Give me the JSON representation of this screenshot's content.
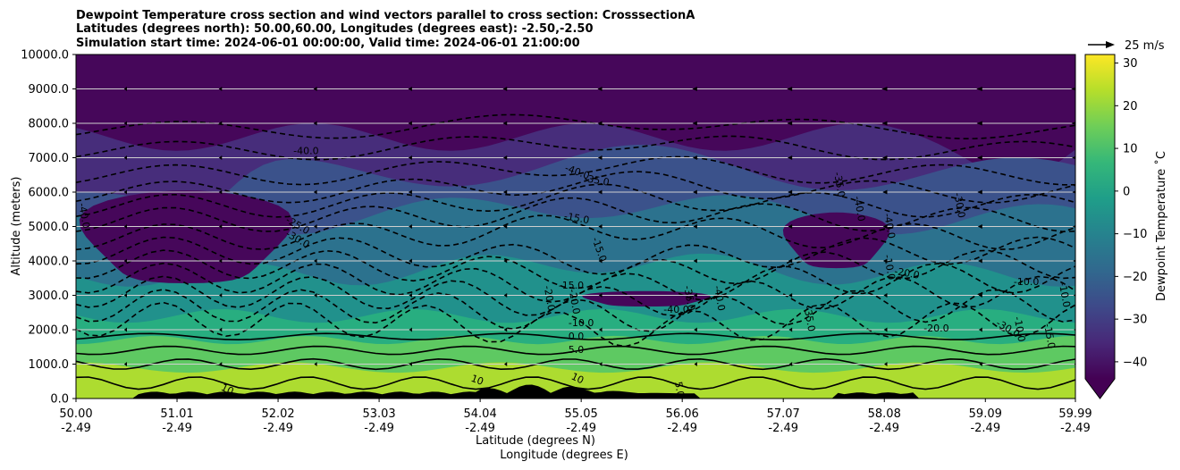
{
  "chart_data": {
    "type": "heatmap",
    "title_lines": [
      "Dewpoint Temperature cross section and wind vectors parallel to cross section: CrosssectionA",
      "Latitudes (degrees north): 50.00,60.00, Longitudes (degrees east): -2.50,-2.50",
      "Simulation start time: 2024-06-01 00:00:00, Valid time: 2024-06-01 21:00:00"
    ],
    "ylabel": "Altitude (meters)",
    "xlabel_lat": "Latitude (degrees N)",
    "xlabel_lon": "Longitude (degrees E)",
    "ylim": [
      0,
      10000
    ],
    "y_ticks": [
      "0.0",
      "1000.0",
      "2000.0",
      "3000.0",
      "4000.0",
      "5000.0",
      "6000.0",
      "7000.0",
      "8000.0",
      "9000.0",
      "10000.0"
    ],
    "y_tick_values": [
      0,
      1000,
      2000,
      3000,
      4000,
      5000,
      6000,
      7000,
      8000,
      9000,
      10000
    ],
    "xlim": [
      50.0,
      59.99
    ],
    "x_tick_values": [
      50.0,
      51.01,
      52.02,
      53.03,
      54.04,
      55.05,
      56.06,
      57.07,
      58.08,
      59.09,
      59.99
    ],
    "x_ticks_lat": [
      "50.00",
      "51.01",
      "52.02",
      "53.03",
      "54.04",
      "55.05",
      "56.06",
      "57.07",
      "58.08",
      "59.09",
      "59.99"
    ],
    "x_ticks_lon": [
      "-2.49",
      "-2.49",
      "-2.49",
      "-2.49",
      "-2.49",
      "-2.49",
      "-2.49",
      "-2.49",
      "-2.49",
      "-2.49",
      "-2.49"
    ],
    "grid": "horizontal",
    "colorbar": {
      "label": "Dewpoint Temperature ˚C",
      "range": [
        -44,
        32
      ],
      "ticks": [
        "−40",
        "−30",
        "−20",
        "−10",
        "0",
        "10",
        "20",
        "30"
      ],
      "tick_values": [
        -40,
        -30,
        -20,
        -10,
        0,
        10,
        20,
        30
      ],
      "extend": "min",
      "colormap": "viridis"
    },
    "quiver_key": {
      "label": "25 m/s",
      "value": 25
    },
    "colormap_stops": [
      "#440154",
      "#482878",
      "#3e4989",
      "#31688e",
      "#26828e",
      "#1f9e89",
      "#35b779",
      "#6ece58",
      "#b5de2b",
      "#fde725"
    ],
    "band_colors": [
      "#46075a",
      "#472d7b",
      "#3b528b",
      "#2c728e",
      "#21918c",
      "#28ae80",
      "#5ec962",
      "#addc30"
    ],
    "terrain_color": "#000000",
    "contour_labels": [
      {
        "text": "-40.0",
        "lat": 52.3,
        "alt": 7100,
        "rot": 0
      },
      {
        "text": "-40.0",
        "lat": 50.05,
        "alt": 5300,
        "rot": 80
      },
      {
        "text": "-25.0",
        "lat": 52.2,
        "alt": 4950,
        "rot": 30
      },
      {
        "text": "-30.0",
        "lat": 52.2,
        "alt": 4550,
        "rot": 30
      },
      {
        "text": "-40.0",
        "lat": 55.0,
        "alt": 6500,
        "rot": 20
      },
      {
        "text": "-35.0",
        "lat": 55.2,
        "alt": 6250,
        "rot": 10
      },
      {
        "text": "-15.0",
        "lat": 55.0,
        "alt": 5150,
        "rot": 10
      },
      {
        "text": "-15.0",
        "lat": 55.2,
        "alt": 4300,
        "rot": 70
      },
      {
        "text": "-15.0",
        "lat": 54.95,
        "alt": 3200,
        "rot": 0
      },
      {
        "text": "-20.0",
        "lat": 54.7,
        "alt": 2900,
        "rot": 80
      },
      {
        "text": "-20.0",
        "lat": 54.95,
        "alt": 2800,
        "rot": 80
      },
      {
        "text": "-10.0",
        "lat": 55.05,
        "alt": 2100,
        "rot": 0
      },
      {
        "text": "0.0",
        "lat": 55.0,
        "alt": 1720,
        "rot": 0
      },
      {
        "text": "5.0",
        "lat": 55.0,
        "alt": 1330,
        "rot": 0
      },
      {
        "text": "-40.0",
        "lat": 56.0,
        "alt": 2500,
        "rot": 0
      },
      {
        "text": "-35.0",
        "lat": 56.1,
        "alt": 2900,
        "rot": 80
      },
      {
        "text": "-40.0",
        "lat": 56.4,
        "alt": 2900,
        "rot": 80
      },
      {
        "text": "-35.0",
        "lat": 57.3,
        "alt": 2300,
        "rot": 80
      },
      {
        "text": "-35.0",
        "lat": 57.6,
        "alt": 6200,
        "rot": 80
      },
      {
        "text": "-40.0",
        "lat": 57.8,
        "alt": 5500,
        "rot": 80
      },
      {
        "text": "-10.0",
        "lat": 58.1,
        "alt": 3800,
        "rot": 80
      },
      {
        "text": "-40.0",
        "lat": 58.1,
        "alt": 5000,
        "rot": 80
      },
      {
        "text": "-20.0",
        "lat": 58.3,
        "alt": 3550,
        "rot": 10
      },
      {
        "text": "-30.0",
        "lat": 58.8,
        "alt": 5600,
        "rot": 80
      },
      {
        "text": "-20.0",
        "lat": 58.6,
        "alt": 1950,
        "rot": 0
      },
      {
        "text": "-30.0",
        "lat": 59.3,
        "alt": 1950,
        "rot": 30
      },
      {
        "text": "-10.0",
        "lat": 59.5,
        "alt": 3300,
        "rot": 0
      },
      {
        "text": "-10.0",
        "lat": 59.4,
        "alt": 2000,
        "rot": 80
      },
      {
        "text": "-15.0",
        "lat": 59.7,
        "alt": 1800,
        "rot": 80
      },
      {
        "text": "-10.0",
        "lat": 59.85,
        "alt": 3000,
        "rot": 80
      },
      {
        "text": "10",
        "lat": 51.5,
        "alt": 180,
        "rot": 25
      },
      {
        "text": "10",
        "lat": 54.0,
        "alt": 450,
        "rot": 20
      },
      {
        "text": "10",
        "lat": 54.6,
        "alt": 80,
        "rot": 20
      },
      {
        "text": "10",
        "lat": 55.0,
        "alt": 500,
        "rot": 25
      },
      {
        "text": "5.0",
        "lat": 56.0,
        "alt": 250,
        "rot": 80
      }
    ]
  }
}
